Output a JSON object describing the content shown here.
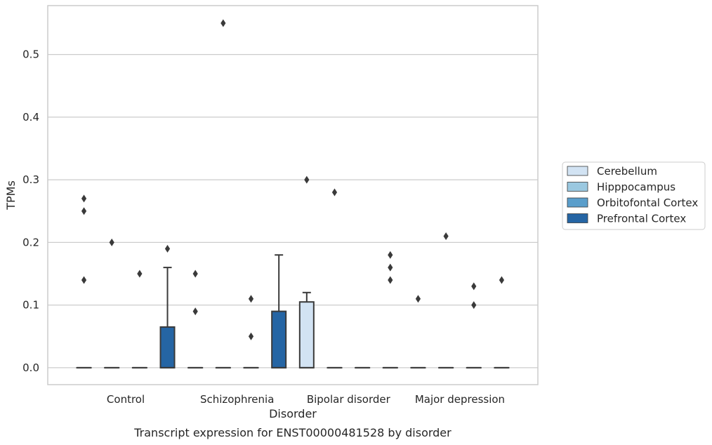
{
  "chart_data": {
    "type": "box",
    "title": "",
    "caption": "Transcript expression for ENST00000481528 by disorder",
    "xlabel": "Disorder",
    "ylabel": "TPMs",
    "ylim": [
      -0.027,
      0.578
    ],
    "yticks": [
      0.0,
      0.1,
      0.2,
      0.3,
      0.4,
      0.5
    ],
    "ytick_labels": [
      "0.0",
      "0.1",
      "0.2",
      "0.3",
      "0.4",
      "0.5"
    ],
    "grid": "horizontal",
    "legend_position": "right, outside plot",
    "categories": [
      "Control",
      "Schizophrenia",
      "Bipolar disorder",
      "Major depression"
    ],
    "series": [
      {
        "name": "Cerebellum",
        "color": "#d2e3f3",
        "boxes": [
          {
            "q1": 0,
            "median": 0,
            "q3": 0,
            "whisker_low": 0,
            "whisker_high": 0,
            "outliers": [
              0.27,
              0.25,
              0.14
            ]
          },
          {
            "q1": 0,
            "median": 0,
            "q3": 0,
            "whisker_low": 0,
            "whisker_high": 0,
            "outliers": [
              0.15,
              0.09
            ]
          },
          {
            "q1": 0,
            "median": 0,
            "q3": 0.105,
            "whisker_low": 0,
            "whisker_high": 0.12,
            "outliers": [
              0.3
            ]
          },
          {
            "q1": 0,
            "median": 0,
            "q3": 0,
            "whisker_low": 0,
            "whisker_high": 0,
            "outliers": [
              0.11
            ]
          }
        ]
      },
      {
        "name": "Hipppocampus",
        "color": "#9ac8e0",
        "boxes": [
          {
            "q1": 0,
            "median": 0,
            "q3": 0,
            "whisker_low": 0,
            "whisker_high": 0,
            "outliers": [
              0.2
            ]
          },
          {
            "q1": 0,
            "median": 0,
            "q3": 0,
            "whisker_low": 0,
            "whisker_high": 0,
            "outliers": [
              0.55
            ]
          },
          {
            "q1": 0,
            "median": 0,
            "q3": 0,
            "whisker_low": 0,
            "whisker_high": 0,
            "outliers": [
              0.28
            ]
          },
          {
            "q1": 0,
            "median": 0,
            "q3": 0,
            "whisker_low": 0,
            "whisker_high": 0,
            "outliers": [
              0.21
            ]
          }
        ]
      },
      {
        "name": "Orbitofontal Cortex",
        "color": "#5a9ecb",
        "boxes": [
          {
            "q1": 0,
            "median": 0,
            "q3": 0,
            "whisker_low": 0,
            "whisker_high": 0,
            "outliers": [
              0.15
            ]
          },
          {
            "q1": 0,
            "median": 0,
            "q3": 0,
            "whisker_low": 0,
            "whisker_high": 0,
            "outliers": [
              0.11,
              0.05
            ]
          },
          {
            "q1": 0,
            "median": 0,
            "q3": 0,
            "whisker_low": 0,
            "whisker_high": 0,
            "outliers": []
          },
          {
            "q1": 0,
            "median": 0,
            "q3": 0,
            "whisker_low": 0,
            "whisker_high": 0,
            "outliers": [
              0.13,
              0.1
            ]
          }
        ]
      },
      {
        "name": "Prefrontal Cortex",
        "color": "#2565a4",
        "boxes": [
          {
            "q1": 0,
            "median": 0,
            "q3": 0.065,
            "whisker_low": 0,
            "whisker_high": 0.16,
            "outliers": [
              0.19
            ]
          },
          {
            "q1": 0,
            "median": 0,
            "q3": 0.09,
            "whisker_low": 0,
            "whisker_high": 0.18,
            "outliers": []
          },
          {
            "q1": 0,
            "median": 0,
            "q3": 0,
            "whisker_low": 0,
            "whisker_high": 0,
            "outliers": [
              0.18,
              0.16,
              0.14
            ]
          },
          {
            "q1": 0,
            "median": 0,
            "q3": 0,
            "whisker_low": 0,
            "whisker_high": 0,
            "outliers": [
              0.14
            ]
          }
        ]
      }
    ]
  },
  "colors": {
    "line": "#3a3a3a",
    "grid": "#cccccc",
    "frame": "#cccccc",
    "outlier": "#3a3a3a"
  }
}
